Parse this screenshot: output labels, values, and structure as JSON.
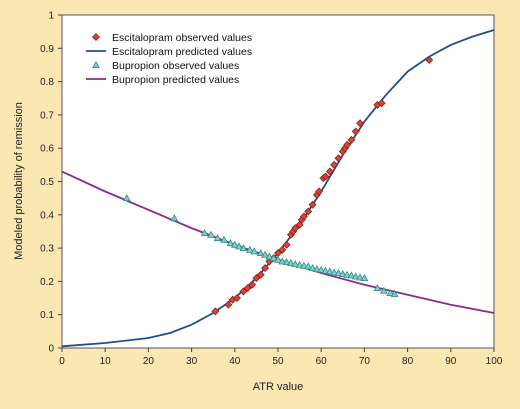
{
  "chart_data": {
    "type": "scatter",
    "title": "",
    "xlabel": "ATR value",
    "ylabel": "Modeled probability of remission",
    "xlim": [
      0,
      100
    ],
    "ylim": [
      0,
      1
    ],
    "x_ticks": [
      "0",
      "10",
      "20",
      "30",
      "40",
      "50",
      "60",
      "70",
      "80",
      "90",
      "100"
    ],
    "y_ticks": [
      "0",
      "0.1",
      "0.2",
      "0.3",
      "0.4",
      "0.5",
      "0.6",
      "0.7",
      "0.8",
      "0.9",
      "1"
    ],
    "grid": false,
    "legend_position": "top-left",
    "series": [
      {
        "name": "Escitalopram observed values",
        "kind": "points",
        "marker": "diamond",
        "color": "#d9443a",
        "stroke": "#8a1f12",
        "points": [
          [
            35.5,
            0.11
          ],
          [
            38.5,
            0.13
          ],
          [
            39.5,
            0.145
          ],
          [
            40.5,
            0.15
          ],
          [
            42,
            0.17
          ],
          [
            43,
            0.18
          ],
          [
            44,
            0.19
          ],
          [
            45,
            0.21
          ],
          [
            46,
            0.22
          ],
          [
            47,
            0.24
          ],
          [
            48,
            0.26
          ],
          [
            49,
            0.27
          ],
          [
            50,
            0.285
          ],
          [
            51,
            0.295
          ],
          [
            52,
            0.31
          ],
          [
            53,
            0.34
          ],
          [
            53.5,
            0.35
          ],
          [
            54,
            0.36
          ],
          [
            55,
            0.37
          ],
          [
            55.5,
            0.385
          ],
          [
            56,
            0.395
          ],
          [
            57,
            0.41
          ],
          [
            58,
            0.43
          ],
          [
            59,
            0.46
          ],
          [
            59.5,
            0.47
          ],
          [
            60.5,
            0.51
          ],
          [
            61,
            0.515
          ],
          [
            62,
            0.53
          ],
          [
            63,
            0.55
          ],
          [
            64,
            0.57
          ],
          [
            65,
            0.59
          ],
          [
            65.5,
            0.6
          ],
          [
            66,
            0.61
          ],
          [
            67,
            0.625
          ],
          [
            68,
            0.65
          ],
          [
            69,
            0.675
          ],
          [
            73,
            0.73
          ],
          [
            74,
            0.735
          ],
          [
            85,
            0.865
          ]
        ]
      },
      {
        "name": "Escitalopram predicted values",
        "kind": "line",
        "color": "#1f4f8f",
        "points": [
          [
            0,
            0.005
          ],
          [
            10,
            0.015
          ],
          [
            20,
            0.03
          ],
          [
            25,
            0.045
          ],
          [
            30,
            0.07
          ],
          [
            35,
            0.105
          ],
          [
            40,
            0.15
          ],
          [
            45,
            0.21
          ],
          [
            50,
            0.285
          ],
          [
            55,
            0.37
          ],
          [
            60,
            0.47
          ],
          [
            65,
            0.58
          ],
          [
            70,
            0.68
          ],
          [
            75,
            0.76
          ],
          [
            80,
            0.83
          ],
          [
            85,
            0.875
          ],
          [
            90,
            0.91
          ],
          [
            95,
            0.935
          ],
          [
            100,
            0.955
          ]
        ]
      },
      {
        "name": "Bupropion observed values",
        "kind": "points",
        "marker": "triangle",
        "color": "#7fd0c8",
        "stroke": "#2e8e86",
        "points": [
          [
            15,
            0.45
          ],
          [
            26,
            0.39
          ],
          [
            33,
            0.345
          ],
          [
            34.5,
            0.34
          ],
          [
            36,
            0.33
          ],
          [
            37.5,
            0.325
          ],
          [
            39,
            0.315
          ],
          [
            40,
            0.31
          ],
          [
            41,
            0.305
          ],
          [
            42,
            0.3
          ],
          [
            43.5,
            0.295
          ],
          [
            44.5,
            0.29
          ],
          [
            46,
            0.285
          ],
          [
            47,
            0.28
          ],
          [
            48,
            0.275
          ],
          [
            49,
            0.27
          ],
          [
            50,
            0.265
          ],
          [
            51,
            0.26
          ],
          [
            52,
            0.258
          ],
          [
            53,
            0.255
          ],
          [
            54,
            0.252
          ],
          [
            55,
            0.25
          ],
          [
            56,
            0.247
          ],
          [
            57,
            0.245
          ],
          [
            58,
            0.24
          ],
          [
            59,
            0.237
          ],
          [
            60,
            0.235
          ],
          [
            61,
            0.232
          ],
          [
            62,
            0.23
          ],
          [
            63,
            0.227
          ],
          [
            64,
            0.225
          ],
          [
            65,
            0.222
          ],
          [
            66,
            0.22
          ],
          [
            67,
            0.218
          ],
          [
            68,
            0.215
          ],
          [
            69,
            0.212
          ],
          [
            70,
            0.21
          ],
          [
            73,
            0.18
          ],
          [
            74.5,
            0.172
          ],
          [
            76,
            0.165
          ],
          [
            77,
            0.162
          ]
        ]
      },
      {
        "name": "Bupropion predicted values",
        "kind": "line",
        "color": "#8a2a8c",
        "points": [
          [
            0,
            0.53
          ],
          [
            10,
            0.47
          ],
          [
            20,
            0.415
          ],
          [
            30,
            0.36
          ],
          [
            40,
            0.31
          ],
          [
            50,
            0.265
          ],
          [
            60,
            0.225
          ],
          [
            70,
            0.19
          ],
          [
            80,
            0.16
          ],
          [
            90,
            0.13
          ],
          [
            100,
            0.105
          ]
        ]
      }
    ]
  }
}
